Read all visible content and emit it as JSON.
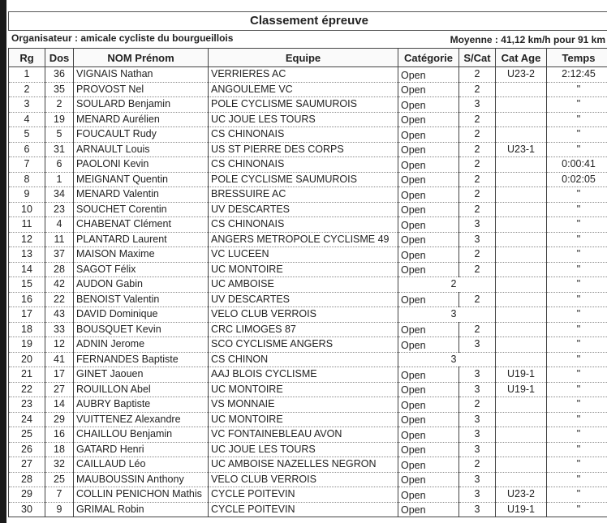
{
  "title": "Classement épreuve",
  "organisateur": "Organisateur : amicale cycliste du bourgueillois",
  "moyenne": "Moyenne : 41,12 km/h pour 91 km",
  "columns": [
    "Rg",
    "Dos",
    "NOM Prénom",
    "Equipe",
    "Catégorie",
    "S/Cat",
    "Cat Age",
    "Temps"
  ],
  "rows": [
    [
      "1",
      "36",
      "VIGNAIS Nathan",
      "VERRIERES AC",
      "Open",
      "2",
      "U23-2",
      "2:12:45"
    ],
    [
      "2",
      "35",
      "PROVOST Nel",
      "ANGOULEME VC",
      "Open",
      "2",
      "",
      "\""
    ],
    [
      "3",
      "2",
      "SOULARD Benjamin",
      "POLE CYCLISME SAUMUROIS",
      "Open",
      "3",
      "",
      "\""
    ],
    [
      "4",
      "19",
      "MENARD Aurélien",
      "UC JOUE LES TOURS",
      "Open",
      "2",
      "",
      "\""
    ],
    [
      "5",
      "5",
      "FOUCAULT Rudy",
      "CS CHINONAIS",
      "Open",
      "2",
      "",
      "\""
    ],
    [
      "6",
      "31",
      "ARNAULT Louis",
      "US ST PIERRE DES CORPS",
      "Open",
      "2",
      "U23-1",
      "\""
    ],
    [
      "7",
      "6",
      "PAOLONI Kevin",
      "CS CHINONAIS",
      "Open",
      "2",
      "",
      "0:00:41"
    ],
    [
      "8",
      "1",
      "MEIGNANT Quentin",
      "POLE CYCLISME SAUMUROIS",
      "Open",
      "2",
      "",
      "0:02:05"
    ],
    [
      "9",
      "34",
      "MENARD Valentin",
      "BRESSUIRE AC",
      "Open",
      "2",
      "",
      "\""
    ],
    [
      "10",
      "23",
      "SOUCHET Corentin",
      "UV DESCARTES",
      "Open",
      "2",
      "",
      "\""
    ],
    [
      "11",
      "4",
      "CHABENAT Clément",
      "CS CHINONAIS",
      "Open",
      "3",
      "",
      "\""
    ],
    [
      "12",
      "11",
      "PLANTARD Laurent",
      "ANGERS METROPOLE CYCLISME 49",
      "Open",
      "3",
      "",
      "\""
    ],
    [
      "13",
      "37",
      "MAISON Maxime",
      "VC LUCEEN",
      "Open",
      "2",
      "",
      "\""
    ],
    [
      "14",
      "28",
      "SAGOT Félix",
      "UC MONTOIRE",
      "Open",
      "2",
      "",
      "\""
    ],
    [
      "15",
      "42",
      "AUDON Gabin",
      "UC AMBOISE",
      "",
      "2",
      "",
      "\""
    ],
    [
      "16",
      "22",
      "BENOIST Valentin",
      "UV DESCARTES",
      "Open",
      "2",
      "",
      "\""
    ],
    [
      "17",
      "43",
      "DAVID Dominique",
      "VELO CLUB VERROIS",
      "",
      "3",
      "",
      "\""
    ],
    [
      "18",
      "33",
      "BOUSQUET Kevin",
      "CRC LIMOGES 87",
      "Open",
      "2",
      "",
      "\""
    ],
    [
      "19",
      "12",
      "ADNIN Jerome",
      "SCO CYCLISME ANGERS",
      "Open",
      "3",
      "",
      "\""
    ],
    [
      "20",
      "41",
      "FERNANDES Baptiste",
      "CS CHINON",
      "",
      "3",
      "",
      "\""
    ],
    [
      "21",
      "17",
      "GINET Jaouen",
      "AAJ BLOIS CYCLISME",
      "Open",
      "3",
      "U19-1",
      "\""
    ],
    [
      "22",
      "27",
      "ROUILLON Abel",
      "UC MONTOIRE",
      "Open",
      "3",
      "U19-1",
      "\""
    ],
    [
      "23",
      "14",
      "AUBRY Baptiste",
      "VS MONNAIE",
      "Open",
      "2",
      "",
      "\""
    ],
    [
      "24",
      "29",
      "VUITTENEZ Alexandre",
      "UC MONTOIRE",
      "Open",
      "3",
      "",
      "\""
    ],
    [
      "25",
      "16",
      "CHAILLOU Benjamin",
      "VC FONTAINEBLEAU AVON",
      "Open",
      "3",
      "",
      "\""
    ],
    [
      "26",
      "18",
      "GATARD Henri",
      "UC JOUE LES TOURS",
      "Open",
      "3",
      "",
      "\""
    ],
    [
      "27",
      "32",
      "CAILLAUD Léo",
      "UC AMBOISE NAZELLES NEGRON",
      "Open",
      "2",
      "",
      "\""
    ],
    [
      "28",
      "25",
      "MAUBOUSSIN Anthony",
      "VELO CLUB VERROIS",
      "Open",
      "3",
      "",
      "\""
    ],
    [
      "29",
      "7",
      "COLLIN PENICHON Mathis",
      "CYCLE POITEVIN",
      "Open",
      "3",
      "U23-2",
      "\""
    ],
    [
      "30",
      "9",
      "GRIMAL Robin",
      "CYCLE POITEVIN",
      "Open",
      "3",
      "U19-1",
      "\""
    ]
  ]
}
